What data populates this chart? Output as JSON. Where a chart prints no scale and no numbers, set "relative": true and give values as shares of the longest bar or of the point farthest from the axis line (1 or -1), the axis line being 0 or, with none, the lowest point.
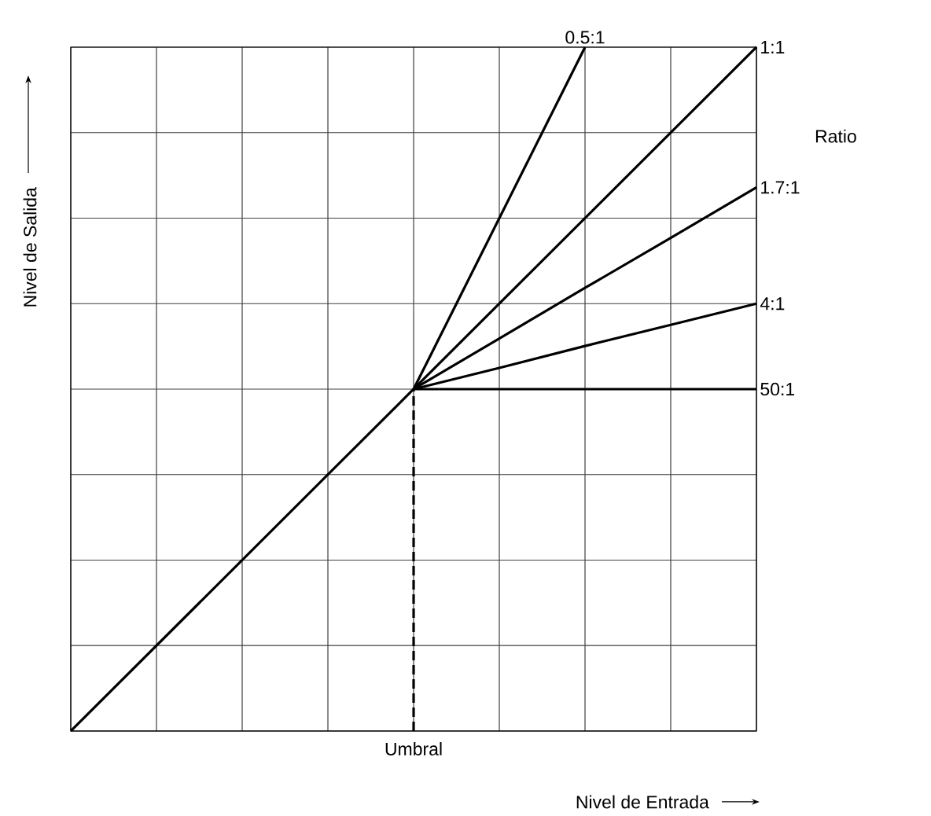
{
  "chart_data": {
    "type": "line",
    "relative": true,
    "xlabel": "Nivel de Entrada",
    "ylabel": "Nivel de Salida",
    "grid": true,
    "marker": "none",
    "line_style": "solid",
    "categories": [
      null,
      null,
      null,
      null,
      null,
      null,
      null,
      null,
      null
    ],
    "series": [
      {
        "name": "1:1",
        "color": "#000000",
        "values": [
          0,
          0.125,
          0.25,
          0.375,
          0.5,
          0.625,
          0.75,
          0.875,
          1
        ]
      },
      {
        "name": "0.5:1",
        "color": "#000000",
        "values": [
          null,
          null,
          null,
          null,
          0.5,
          0.75,
          1,
          null,
          null
        ]
      },
      {
        "name": "1.7:1",
        "color": "#000000",
        "values": [
          null,
          null,
          null,
          null,
          0.5,
          0.574,
          0.648,
          0.721,
          0.795
        ]
      },
      {
        "name": "4:1",
        "color": "#000000",
        "values": [
          null,
          null,
          null,
          null,
          0.5,
          0.531,
          0.563,
          0.594,
          0.625
        ]
      },
      {
        "name": "50:1",
        "color": "#000000",
        "values": [
          null,
          null,
          null,
          null,
          0.5,
          0.5,
          0.5,
          0.5,
          0.5
        ]
      }
    ],
    "annotations": [
      "Ratio",
      "Umbral"
    ]
  }
}
